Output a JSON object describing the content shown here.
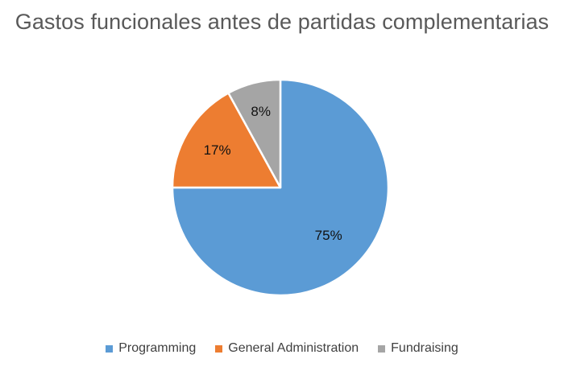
{
  "chart_data": {
    "type": "pie",
    "title": "Gastos funcionales antes de partidas complementarias",
    "categories": [
      "Programming",
      "General Administration",
      "Fundraising"
    ],
    "values": [
      75,
      17,
      8
    ],
    "data_labels": [
      "75%",
      "17%",
      "8%"
    ],
    "colors": [
      "#5B9BD5",
      "#ED7D31",
      "#A5A5A5"
    ],
    "legend_position": "bottom"
  }
}
